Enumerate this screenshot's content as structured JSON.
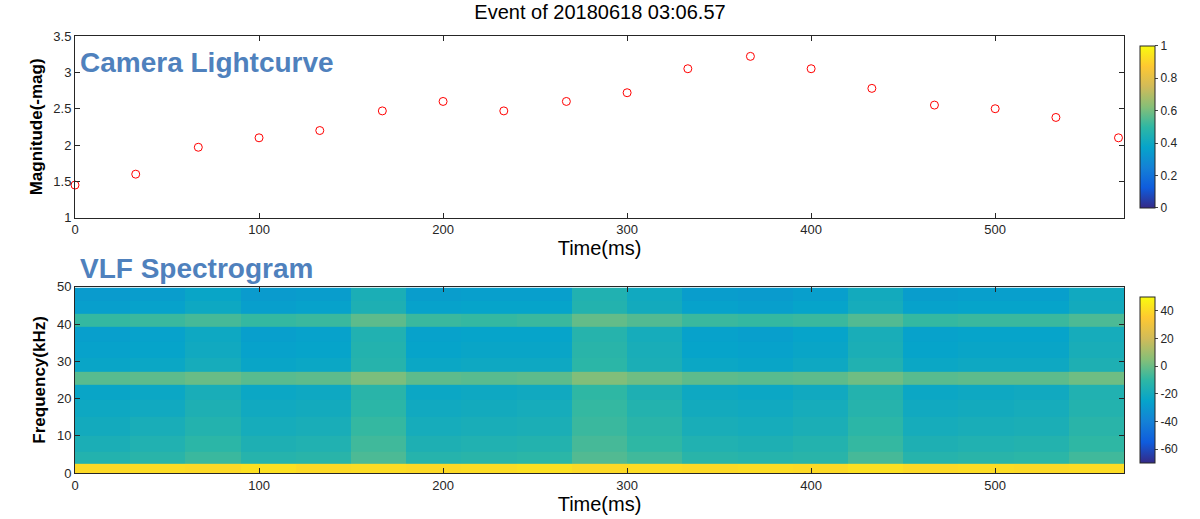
{
  "chart_data": [
    {
      "type": "scatter",
      "title": "Event of 20180618 03:06.57",
      "annotation": "Camera Lightcurve",
      "x_label": "Time(ms)",
      "y_label": "Magnitude(-mag)",
      "x": [
        0,
        33,
        67,
        100,
        133,
        167,
        200,
        233,
        267,
        300,
        333,
        367,
        400,
        433,
        467,
        500,
        533,
        567
      ],
      "values": [
        1.45,
        1.6,
        1.97,
        2.1,
        2.2,
        2.47,
        2.6,
        2.47,
        2.6,
        2.72,
        3.05,
        3.22,
        3.05,
        2.78,
        2.55,
        2.5,
        2.38,
        2.1
      ],
      "color": "red",
      "marker": "circle-open",
      "xlim": [
        0,
        570
      ],
      "xticks": [
        0,
        100,
        200,
        300,
        400,
        500
      ],
      "ylim": [
        1,
        3.5
      ],
      "yticks": [
        1,
        1.5,
        2,
        2.5,
        3,
        3.5
      ],
      "grid": false,
      "colorbar": {
        "lim": [
          0,
          1
        ],
        "ticks": [
          0,
          0.2,
          0.4,
          0.6,
          0.8,
          1
        ]
      }
    },
    {
      "type": "heatmap",
      "annotation": "VLF Spectrogram",
      "x_label": "Time(ms)",
      "y_label": "Frequency(kHz)",
      "x": [
        15,
        45,
        75,
        105,
        135,
        165,
        195,
        225,
        255,
        285,
        315,
        345,
        375,
        405,
        435,
        465,
        495,
        525,
        555
      ],
      "y": [
        1,
        4,
        7.5,
        12.5,
        17.5,
        22,
        25.5,
        29,
        33,
        37.5,
        41,
        44.5,
        48
      ],
      "z": [
        [
          40,
          41,
          40,
          42,
          40,
          41,
          40,
          41,
          42,
          40,
          41,
          40,
          41,
          40,
          42,
          40,
          41,
          40,
          41
        ],
        [
          -14,
          -12,
          -8,
          -13,
          -12,
          -5,
          -13,
          -12,
          -11,
          -4,
          -7,
          -12,
          -13,
          -12,
          -6,
          -13,
          -12,
          -11,
          -7
        ],
        [
          -17,
          -15,
          -11,
          -16,
          -15,
          -7,
          -16,
          -15,
          -14,
          -6,
          -10,
          -15,
          -16,
          -14,
          -9,
          -16,
          -15,
          -14,
          -10
        ],
        [
          -20,
          -18,
          -14,
          -19,
          -18,
          -9,
          -19,
          -18,
          -17,
          -8,
          -12,
          -18,
          -19,
          -17,
          -11,
          -19,
          -18,
          -17,
          -12
        ],
        [
          -22,
          -21,
          -16,
          -21,
          -20,
          -11,
          -21,
          -20,
          -19,
          -9,
          -14,
          -20,
          -21,
          -19,
          -13,
          -21,
          -20,
          -19,
          -14
        ],
        [
          -24,
          -23,
          -18,
          -23,
          -22,
          -12,
          -23,
          -22,
          -21,
          -10,
          -16,
          -22,
          -23,
          -21,
          -14,
          -23,
          -22,
          -21,
          -15
        ],
        [
          -3,
          -2,
          0,
          -3,
          -2,
          3,
          -2,
          -3,
          -2,
          4,
          1,
          -2,
          -3,
          -2,
          1,
          -3,
          -2,
          -2,
          1
        ],
        [
          -24,
          -23,
          -19,
          -24,
          -23,
          -13,
          -23,
          -22,
          -22,
          -11,
          -17,
          -23,
          -24,
          -22,
          -15,
          -23,
          -22,
          -22,
          -16
        ],
        [
          -26,
          -25,
          -21,
          -26,
          -25,
          -14,
          -25,
          -24,
          -24,
          -12,
          -18,
          -25,
          -26,
          -24,
          -17,
          -25,
          -24,
          -24,
          -18
        ],
        [
          -27,
          -26,
          -22,
          -27,
          -26,
          -15,
          -26,
          -25,
          -25,
          -13,
          -19,
          -26,
          -27,
          -25,
          -18,
          -26,
          -25,
          -25,
          -19
        ],
        [
          -9,
          -8,
          -6,
          -9,
          -8,
          -2,
          -8,
          -9,
          -8,
          -1,
          -4,
          -8,
          -9,
          -8,
          -4,
          -9,
          -8,
          -8,
          -5
        ],
        [
          -27,
          -26,
          -22,
          -27,
          -26,
          -16,
          -26,
          -25,
          -25,
          -14,
          -20,
          -26,
          -27,
          -25,
          -19,
          -26,
          -25,
          -25,
          -20
        ],
        [
          -29,
          -28,
          -24,
          -29,
          -28,
          -17,
          -28,
          -27,
          -27,
          -15,
          -21,
          -28,
          -29,
          -27,
          -20,
          -28,
          -27,
          -27,
          -21
        ]
      ],
      "xlim": [
        0,
        570
      ],
      "xticks": [
        0,
        100,
        200,
        300,
        400,
        500
      ],
      "ylim": [
        0,
        50
      ],
      "yticks": [
        0,
        10,
        20,
        30,
        40,
        50
      ],
      "grid": false,
      "colorbar": {
        "lim": [
          -70,
          50
        ],
        "ticks": [
          -60,
          -40,
          -20,
          0,
          20,
          40
        ]
      }
    }
  ]
}
